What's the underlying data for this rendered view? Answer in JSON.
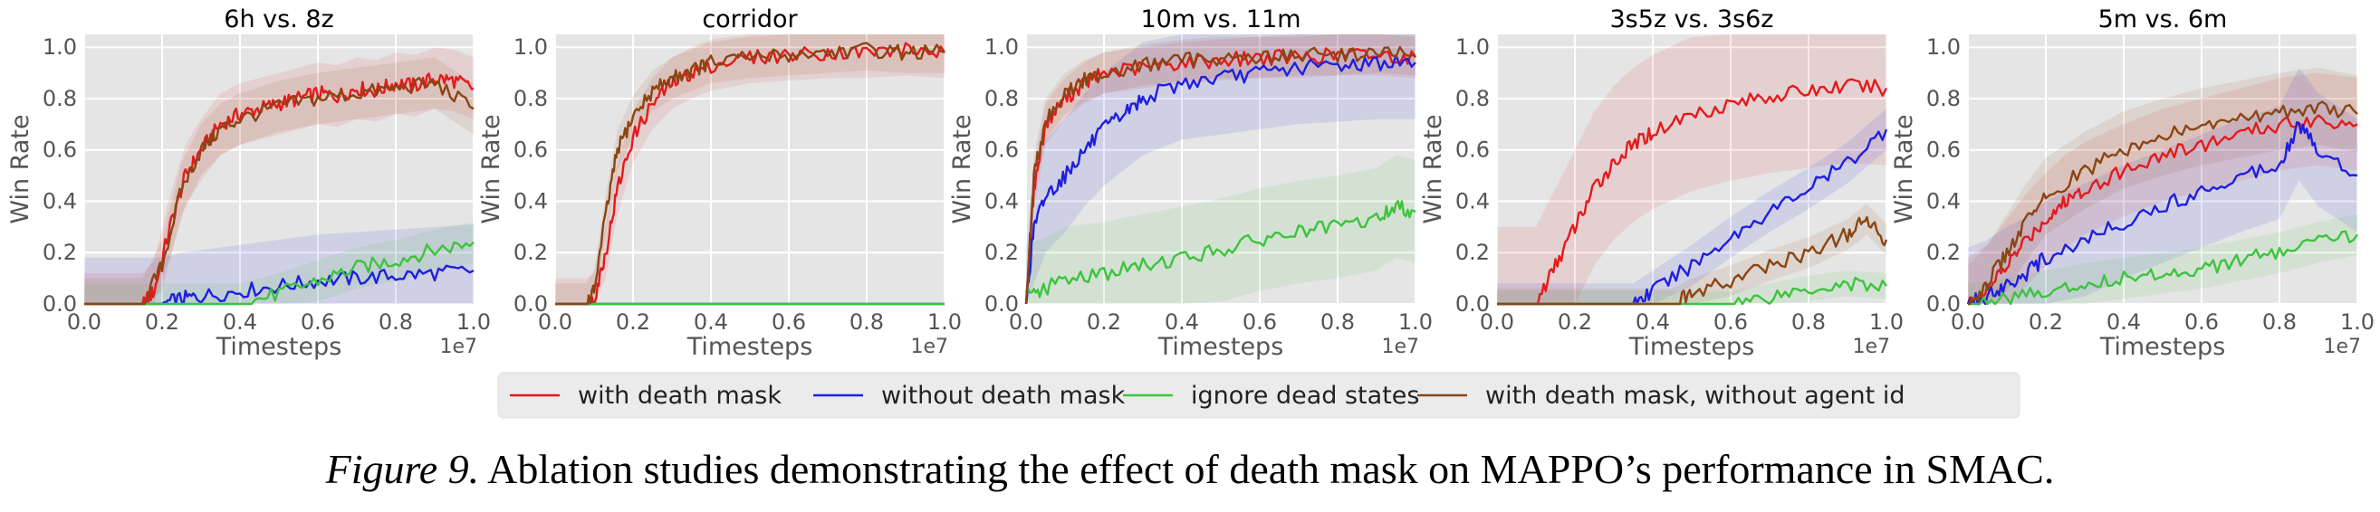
{
  "figure": {
    "caption_label": "Figure 9.",
    "caption_text": "Ablation studies demonstrating the effect of death mask on MAPPO’s performance in SMAC."
  },
  "legend": {
    "entries": [
      {
        "label": "with death mask",
        "color": "#e41a1c"
      },
      {
        "label": "without death mask",
        "color": "#1f1fe0"
      },
      {
        "label": "ignore dead states",
        "color": "#3cc43c"
      },
      {
        "label": "with death mask, without agent id",
        "color": "#8b4513"
      }
    ]
  },
  "chart_data": [
    {
      "type": "line",
      "title": "6h vs. 8z",
      "xlabel": "Timesteps",
      "ylabel": "Win Rate",
      "xlim": [
        0,
        1.0
      ],
      "ylim": [
        0,
        1.05
      ],
      "x_scale_label": "1e7",
      "xticks": [
        "0.0",
        "0.2",
        "0.4",
        "0.6",
        "0.8",
        "1.0"
      ],
      "yticks": [
        "0.0",
        "0.2",
        "0.4",
        "0.6",
        "0.8",
        "1.0"
      ],
      "grid": true,
      "series": [
        {
          "name": "with death mask",
          "color": "#e41a1c",
          "band": 0.12,
          "x": [
            0,
            0.1,
            0.15,
            0.18,
            0.22,
            0.26,
            0.3,
            0.35,
            0.4,
            0.45,
            0.5,
            0.55,
            0.6,
            0.65,
            0.7,
            0.75,
            0.8,
            0.85,
            0.9,
            0.95,
            1.0
          ],
          "y": [
            0,
            0,
            0,
            0.05,
            0.3,
            0.5,
            0.6,
            0.7,
            0.74,
            0.76,
            0.78,
            0.8,
            0.82,
            0.81,
            0.84,
            0.83,
            0.86,
            0.85,
            0.88,
            0.87,
            0.84
          ]
        },
        {
          "name": "without death mask",
          "color": "#1f1fe0",
          "band": 0.18,
          "x": [
            0,
            0.2,
            0.25,
            0.3,
            0.4,
            0.5,
            0.6,
            0.7,
            0.8,
            0.9,
            1.0
          ],
          "y": [
            0,
            0,
            0.02,
            0.03,
            0.05,
            0.07,
            0.09,
            0.1,
            0.11,
            0.12,
            0.13
          ]
        },
        {
          "name": "ignore dead states",
          "color": "#3cc43c",
          "band": 0.08,
          "x": [
            0,
            0.4,
            0.5,
            0.6,
            0.7,
            0.8,
            0.9,
            1.0
          ],
          "y": [
            0,
            0,
            0.04,
            0.09,
            0.14,
            0.17,
            0.21,
            0.24
          ]
        },
        {
          "name": "with death mask, without agent id",
          "color": "#8b4513",
          "band": 0.1,
          "x": [
            0,
            0.15,
            0.2,
            0.25,
            0.3,
            0.35,
            0.4,
            0.5,
            0.6,
            0.7,
            0.8,
            0.9,
            1.0
          ],
          "y": [
            0,
            0,
            0.15,
            0.45,
            0.6,
            0.68,
            0.72,
            0.77,
            0.8,
            0.82,
            0.84,
            0.86,
            0.76
          ]
        }
      ]
    },
    {
      "type": "line",
      "title": "corridor",
      "xlabel": "Timesteps",
      "ylabel": "Win Rate",
      "xlim": [
        0,
        1.0
      ],
      "ylim": [
        0,
        1.05
      ],
      "x_scale_label": "1e7",
      "xticks": [
        "0.0",
        "0.2",
        "0.4",
        "0.6",
        "0.8",
        "1.0"
      ],
      "yticks": [
        "0.0",
        "0.2",
        "0.4",
        "0.6",
        "0.8",
        "1.0"
      ],
      "grid": true,
      "series": [
        {
          "name": "with death mask",
          "color": "#e41a1c",
          "band": 0.1,
          "x": [
            0,
            0.08,
            0.1,
            0.13,
            0.16,
            0.2,
            0.25,
            0.3,
            0.35,
            0.4,
            0.5,
            0.6,
            0.7,
            0.8,
            0.9,
            1.0
          ],
          "y": [
            0,
            0,
            0.02,
            0.2,
            0.45,
            0.65,
            0.78,
            0.86,
            0.9,
            0.93,
            0.96,
            0.97,
            0.98,
            0.98,
            0.99,
            0.98
          ]
        },
        {
          "name": "without death mask",
          "color": "#1f1fe0",
          "band": 0,
          "x": [
            0,
            1.0
          ],
          "y": [
            0,
            0
          ]
        },
        {
          "name": "ignore dead states",
          "color": "#3cc43c",
          "band": 0,
          "x": [
            0,
            1.0
          ],
          "y": [
            0,
            0
          ]
        },
        {
          "name": "with death mask, without agent id",
          "color": "#8b4513",
          "band": 0.08,
          "x": [
            0,
            0.08,
            0.1,
            0.13,
            0.16,
            0.2,
            0.25,
            0.3,
            0.35,
            0.4,
            0.5,
            0.6,
            0.7,
            0.8,
            0.9,
            1.0
          ],
          "y": [
            0,
            0,
            0.05,
            0.35,
            0.6,
            0.73,
            0.83,
            0.88,
            0.91,
            0.94,
            0.96,
            0.97,
            0.98,
            0.99,
            0.98,
            0.98
          ]
        }
      ]
    },
    {
      "type": "line",
      "title": "10m vs. 11m",
      "xlabel": "Timesteps",
      "ylabel": "Win Rate",
      "xlim": [
        0,
        1.0
      ],
      "ylim": [
        0,
        1.05
      ],
      "x_scale_label": "1e7",
      "xticks": [
        "0.0",
        "0.2",
        "0.4",
        "0.6",
        "0.8",
        "1.0"
      ],
      "yticks": [
        "0.0",
        "0.2",
        "0.4",
        "0.6",
        "0.8",
        "1.0"
      ],
      "grid": true,
      "series": [
        {
          "name": "with death mask",
          "color": "#e41a1c",
          "band": 0.08,
          "x": [
            0,
            0.02,
            0.05,
            0.1,
            0.15,
            0.2,
            0.3,
            0.4,
            0.5,
            0.6,
            0.7,
            0.8,
            0.9,
            1.0
          ],
          "y": [
            0,
            0.45,
            0.7,
            0.8,
            0.86,
            0.9,
            0.92,
            0.94,
            0.95,
            0.96,
            0.96,
            0.97,
            0.97,
            0.96
          ]
        },
        {
          "name": "without death mask",
          "color": "#1f1fe0",
          "band": 0.22,
          "x": [
            0,
            0.02,
            0.05,
            0.1,
            0.15,
            0.2,
            0.25,
            0.3,
            0.4,
            0.5,
            0.6,
            0.7,
            0.8,
            0.9,
            1.0
          ],
          "y": [
            0,
            0.3,
            0.42,
            0.5,
            0.6,
            0.68,
            0.74,
            0.8,
            0.86,
            0.88,
            0.9,
            0.92,
            0.93,
            0.94,
            0.94
          ]
        },
        {
          "name": "ignore dead states",
          "color": "#3cc43c",
          "band": 0.2,
          "x": [
            0,
            0.05,
            0.1,
            0.2,
            0.3,
            0.4,
            0.5,
            0.6,
            0.7,
            0.8,
            0.9,
            0.95,
            1.0
          ],
          "y": [
            0.03,
            0.06,
            0.1,
            0.12,
            0.15,
            0.18,
            0.21,
            0.25,
            0.28,
            0.3,
            0.33,
            0.38,
            0.36
          ]
        },
        {
          "name": "with death mask, without agent id",
          "color": "#8b4513",
          "band": 0.08,
          "x": [
            0,
            0.02,
            0.05,
            0.1,
            0.15,
            0.2,
            0.3,
            0.4,
            0.5,
            0.6,
            0.7,
            0.8,
            0.9,
            1.0
          ],
          "y": [
            0,
            0.5,
            0.72,
            0.82,
            0.87,
            0.9,
            0.93,
            0.95,
            0.96,
            0.96,
            0.97,
            0.97,
            0.98,
            0.97
          ]
        }
      ]
    },
    {
      "type": "line",
      "title": "3s5z vs. 3s6z",
      "xlabel": "Timesteps",
      "ylabel": "Win Rate",
      "xlim": [
        0,
        1.0
      ],
      "ylim": [
        0,
        1.05
      ],
      "x_scale_label": "1e7",
      "xticks": [
        "0.0",
        "0.2",
        "0.4",
        "0.6",
        "0.8",
        "1.0"
      ],
      "yticks": [
        "0.0",
        "0.2",
        "0.4",
        "0.6",
        "0.8",
        "1.0"
      ],
      "grid": true,
      "series": [
        {
          "name": "with death mask",
          "color": "#e41a1c",
          "band": 0.3,
          "x": [
            0,
            0.1,
            0.15,
            0.2,
            0.25,
            0.3,
            0.35,
            0.4,
            0.5,
            0.6,
            0.7,
            0.8,
            0.9,
            1.0
          ],
          "y": [
            0,
            0,
            0.15,
            0.3,
            0.45,
            0.55,
            0.62,
            0.67,
            0.74,
            0.78,
            0.81,
            0.83,
            0.85,
            0.84
          ]
        },
        {
          "name": "without death mask",
          "color": "#1f1fe0",
          "band": 0.08,
          "x": [
            0,
            0.35,
            0.4,
            0.5,
            0.6,
            0.7,
            0.8,
            0.9,
            1.0
          ],
          "y": [
            0,
            0,
            0.05,
            0.15,
            0.26,
            0.36,
            0.45,
            0.55,
            0.68
          ]
        },
        {
          "name": "ignore dead states",
          "color": "#3cc43c",
          "band": 0.05,
          "x": [
            0,
            0.6,
            0.7,
            0.8,
            0.9,
            1.0
          ],
          "y": [
            0,
            0,
            0.03,
            0.06,
            0.08,
            0.07
          ]
        },
        {
          "name": "with death mask, without agent id",
          "color": "#8b4513",
          "band": 0.06,
          "x": [
            0,
            0.45,
            0.5,
            0.6,
            0.7,
            0.8,
            0.9,
            0.95,
            1.0
          ],
          "y": [
            0,
            0,
            0.04,
            0.09,
            0.15,
            0.2,
            0.27,
            0.33,
            0.25
          ]
        }
      ]
    },
    {
      "type": "line",
      "title": "5m vs. 6m",
      "xlabel": "Timesteps",
      "ylabel": "Win Rate",
      "xlim": [
        0,
        1.0
      ],
      "ylim": [
        0,
        1.05
      ],
      "x_scale_label": "1e7",
      "xticks": [
        "0.0",
        "0.2",
        "0.4",
        "0.6",
        "0.8",
        "1.0"
      ],
      "yticks": [
        "0.0",
        "0.2",
        "0.4",
        "0.6",
        "0.8",
        "1.0"
      ],
      "grid": true,
      "series": [
        {
          "name": "with death mask",
          "color": "#e41a1c",
          "band": 0.18,
          "x": [
            0,
            0.05,
            0.1,
            0.15,
            0.2,
            0.25,
            0.3,
            0.4,
            0.5,
            0.6,
            0.7,
            0.8,
            0.9,
            1.0
          ],
          "y": [
            0,
            0.05,
            0.15,
            0.25,
            0.33,
            0.4,
            0.45,
            0.52,
            0.58,
            0.62,
            0.66,
            0.7,
            0.72,
            0.7
          ]
        },
        {
          "name": "without death mask",
          "color": "#1f1fe0",
          "band": 0.22,
          "x": [
            0,
            0.05,
            0.1,
            0.15,
            0.2,
            0.3,
            0.4,
            0.5,
            0.6,
            0.7,
            0.8,
            0.85,
            0.9,
            1.0
          ],
          "y": [
            0,
            0.03,
            0.08,
            0.12,
            0.18,
            0.25,
            0.32,
            0.38,
            0.44,
            0.5,
            0.55,
            0.7,
            0.6,
            0.5
          ]
        },
        {
          "name": "ignore dead states",
          "color": "#3cc43c",
          "band": 0.08,
          "x": [
            0,
            0.1,
            0.2,
            0.3,
            0.4,
            0.5,
            0.6,
            0.7,
            0.8,
            0.9,
            1.0
          ],
          "y": [
            0,
            0.02,
            0.05,
            0.08,
            0.1,
            0.12,
            0.14,
            0.17,
            0.2,
            0.24,
            0.27
          ]
        },
        {
          "name": "with death mask, without agent id",
          "color": "#8b4513",
          "band": 0.15,
          "x": [
            0,
            0.05,
            0.1,
            0.15,
            0.2,
            0.3,
            0.4,
            0.5,
            0.6,
            0.7,
            0.8,
            0.9,
            1.0
          ],
          "y": [
            0,
            0.08,
            0.2,
            0.32,
            0.42,
            0.52,
            0.6,
            0.65,
            0.69,
            0.72,
            0.75,
            0.77,
            0.74
          ]
        }
      ]
    }
  ]
}
